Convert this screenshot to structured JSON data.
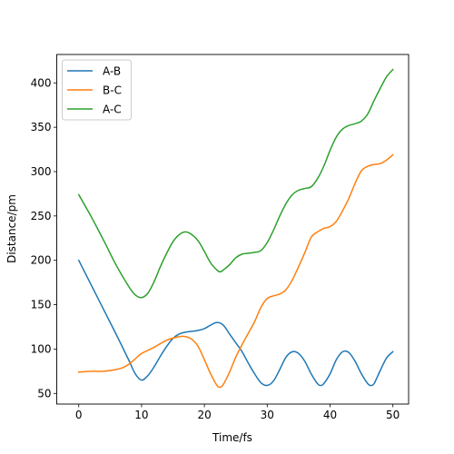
{
  "chart_data": {
    "type": "line",
    "title": "",
    "xlabel": "Time/fs",
    "ylabel": "Distance/pm",
    "xlim": [
      -3.5,
      52.5
    ],
    "ylim": [
      38,
      432
    ],
    "xticks": [
      0,
      10,
      20,
      30,
      40,
      50
    ],
    "yticks": [
      50,
      100,
      150,
      200,
      250,
      300,
      350,
      400
    ],
    "grid": false,
    "legend_position": "top-left",
    "series": [
      {
        "name": "A-B",
        "color": "#1f77b4",
        "points": [
          [
            0,
            200
          ],
          [
            2,
            172
          ],
          [
            4,
            144
          ],
          [
            6,
            116
          ],
          [
            8,
            87
          ],
          [
            9,
            72
          ],
          [
            10,
            65
          ],
          [
            11,
            70
          ],
          [
            12,
            80
          ],
          [
            13,
            92
          ],
          [
            14,
            103
          ],
          [
            15,
            112
          ],
          [
            16,
            117
          ],
          [
            17,
            119
          ],
          [
            18,
            120
          ],
          [
            19,
            121
          ],
          [
            20,
            123
          ],
          [
            21,
            127
          ],
          [
            22,
            130
          ],
          [
            23,
            127
          ],
          [
            24,
            117
          ],
          [
            25,
            107
          ],
          [
            26,
            97
          ],
          [
            27,
            84
          ],
          [
            28,
            72
          ],
          [
            29,
            62
          ],
          [
            30,
            59
          ],
          [
            31,
            64
          ],
          [
            32,
            77
          ],
          [
            33,
            91
          ],
          [
            34,
            97
          ],
          [
            35,
            95
          ],
          [
            36,
            86
          ],
          [
            37,
            72
          ],
          [
            38,
            61
          ],
          [
            38.5,
            59
          ],
          [
            39,
            61
          ],
          [
            40,
            72
          ],
          [
            41,
            88
          ],
          [
            42,
            97
          ],
          [
            43,
            96
          ],
          [
            44,
            86
          ],
          [
            45,
            72
          ],
          [
            46,
            61
          ],
          [
            46.5,
            59
          ],
          [
            47,
            61
          ],
          [
            48,
            76
          ],
          [
            49,
            90
          ],
          [
            50,
            97
          ]
        ]
      },
      {
        "name": "B-C",
        "color": "#ff7f0e",
        "points": [
          [
            0,
            74
          ],
          [
            2,
            75
          ],
          [
            4,
            75
          ],
          [
            6,
            77
          ],
          [
            7,
            79
          ],
          [
            8,
            83
          ],
          [
            9,
            89
          ],
          [
            10,
            95
          ],
          [
            12,
            102
          ],
          [
            14,
            110
          ],
          [
            16,
            114
          ],
          [
            17,
            114
          ],
          [
            18,
            111
          ],
          [
            19,
            103
          ],
          [
            20,
            88
          ],
          [
            21,
            72
          ],
          [
            22,
            59
          ],
          [
            22.5,
            57
          ],
          [
            23,
            60
          ],
          [
            24,
            74
          ],
          [
            25,
            91
          ],
          [
            26,
            105
          ],
          [
            27,
            118
          ],
          [
            28,
            131
          ],
          [
            29,
            147
          ],
          [
            30,
            157
          ],
          [
            31,
            160
          ],
          [
            32,
            162
          ],
          [
            33,
            167
          ],
          [
            34,
            178
          ],
          [
            35,
            193
          ],
          [
            36,
            209
          ],
          [
            37,
            226
          ],
          [
            38,
            232
          ],
          [
            39,
            236
          ],
          [
            40,
            238
          ],
          [
            41,
            244
          ],
          [
            42,
            256
          ],
          [
            43,
            270
          ],
          [
            44,
            287
          ],
          [
            45,
            301
          ],
          [
            46,
            306
          ],
          [
            47,
            308
          ],
          [
            48,
            309
          ],
          [
            49,
            313
          ],
          [
            50,
            319
          ]
        ]
      },
      {
        "name": "A-C",
        "color": "#2ca02c",
        "points": [
          [
            0,
            274
          ],
          [
            2,
            249
          ],
          [
            4,
            222
          ],
          [
            6,
            194
          ],
          [
            8,
            170
          ],
          [
            9,
            161
          ],
          [
            10,
            158
          ],
          [
            11,
            163
          ],
          [
            12,
            176
          ],
          [
            13,
            193
          ],
          [
            14,
            208
          ],
          [
            15,
            221
          ],
          [
            16,
            229
          ],
          [
            17,
            232
          ],
          [
            18,
            229
          ],
          [
            19,
            222
          ],
          [
            20,
            210
          ],
          [
            21,
            197
          ],
          [
            22,
            189
          ],
          [
            22.5,
            187
          ],
          [
            23,
            189
          ],
          [
            24,
            195
          ],
          [
            25,
            203
          ],
          [
            26,
            207
          ],
          [
            27,
            208
          ],
          [
            28,
            209
          ],
          [
            29,
            211
          ],
          [
            30,
            220
          ],
          [
            31,
            234
          ],
          [
            32,
            250
          ],
          [
            33,
            264
          ],
          [
            34,
            274
          ],
          [
            35,
            279
          ],
          [
            36,
            281
          ],
          [
            37,
            283
          ],
          [
            38,
            292
          ],
          [
            39,
            306
          ],
          [
            40,
            324
          ],
          [
            41,
            339
          ],
          [
            42,
            348
          ],
          [
            43,
            352
          ],
          [
            44,
            354
          ],
          [
            45,
            357
          ],
          [
            46,
            365
          ],
          [
            47,
            380
          ],
          [
            48,
            394
          ],
          [
            49,
            407
          ],
          [
            50,
            415
          ]
        ]
      }
    ]
  }
}
